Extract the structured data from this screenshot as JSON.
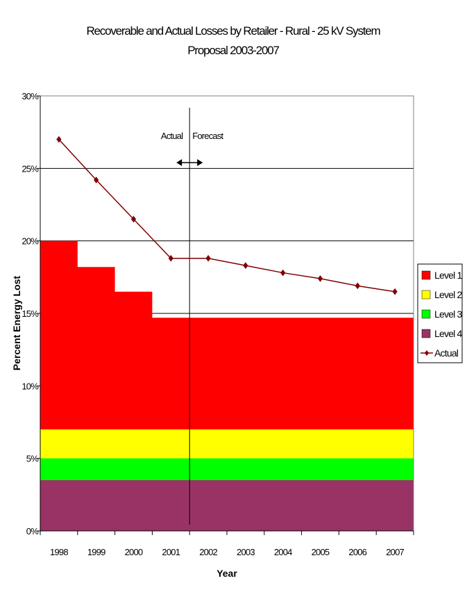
{
  "chart_data": {
    "type": "area",
    "title": "Recoverable and Actual Losses by Retailer - Rural - 25 kV System",
    "subtitle": "Proposal 2003-2007",
    "xlabel": "Year",
    "ylabel": "Percent Energy Lost",
    "categories": [
      "1998",
      "1999",
      "2000",
      "2001",
      "2002",
      "2003",
      "2004",
      "2005",
      "2006",
      "2007"
    ],
    "ylim": [
      0,
      30
    ],
    "y_ticks": [
      0,
      5,
      10,
      15,
      20,
      25,
      30
    ],
    "y_tick_labels": [
      "0%",
      "5%",
      "10%",
      "15%",
      "20%",
      "25%",
      "30%"
    ],
    "gridlines": "horizontal",
    "series": [
      {
        "name": "Level 1",
        "kind": "step-area",
        "color": "#ff0000",
        "values": [
          20.0,
          18.2,
          16.5,
          14.7,
          14.7,
          14.7,
          14.7,
          14.7,
          14.7,
          14.7
        ]
      },
      {
        "name": "Level 2",
        "kind": "step-area",
        "color": "#ffff00",
        "values": [
          7.0,
          7.0,
          7.0,
          7.0,
          7.0,
          7.0,
          7.0,
          7.0,
          7.0,
          7.0
        ]
      },
      {
        "name": "Level 3",
        "kind": "step-area",
        "color": "#00ff00",
        "values": [
          5.0,
          5.0,
          5.0,
          5.0,
          5.0,
          5.0,
          5.0,
          5.0,
          5.0,
          5.0
        ]
      },
      {
        "name": "Level 4",
        "kind": "step-area",
        "color": "#993366",
        "values": [
          3.5,
          3.5,
          3.5,
          3.5,
          3.5,
          3.5,
          3.5,
          3.5,
          3.5,
          3.5
        ]
      },
      {
        "name": "Actual",
        "kind": "line",
        "color": "#800000",
        "values": [
          27.0,
          24.2,
          21.5,
          18.8,
          18.8,
          18.3,
          17.8,
          17.4,
          16.9,
          16.5
        ]
      }
    ],
    "legend_position": "right",
    "annotations": {
      "actual_label": "Actual",
      "forecast_label": "Forecast",
      "divider_between": [
        "2001",
        "2002"
      ]
    }
  }
}
